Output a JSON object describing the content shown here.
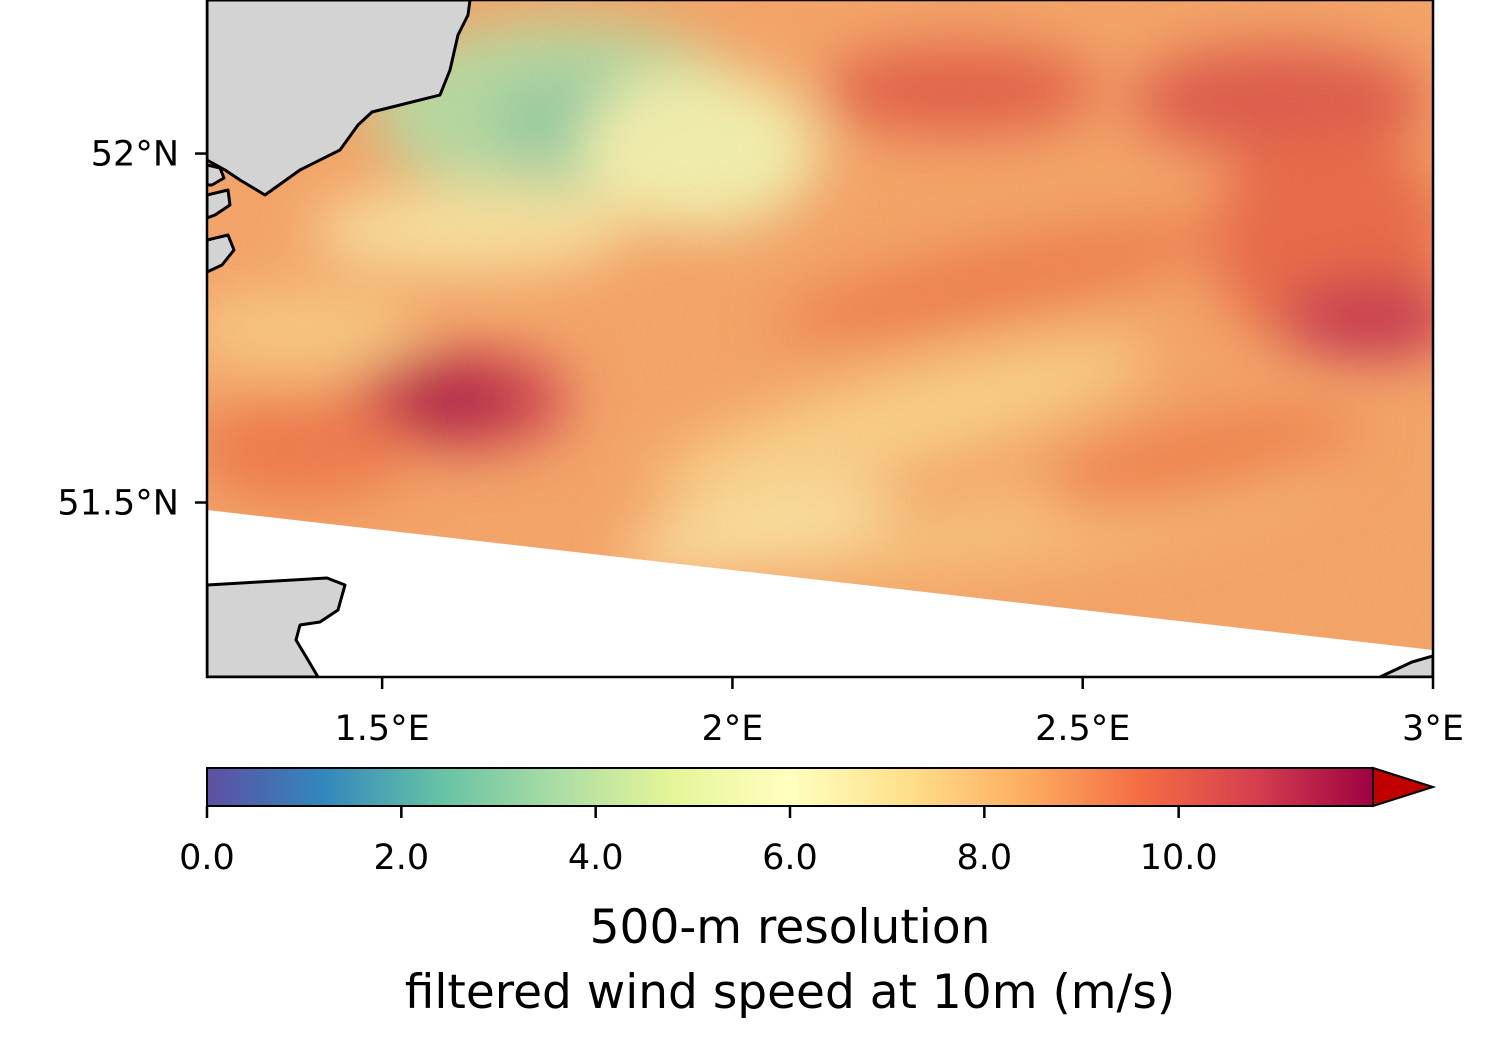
{
  "map": {
    "lat_ticks": [
      {
        "value": 52.0,
        "label": "52°N"
      },
      {
        "value": 51.5,
        "label": "51.5°N"
      }
    ],
    "lon_ticks": [
      {
        "value": 1.5,
        "label": "1.5°E"
      },
      {
        "value": 2.0,
        "label": "2°E"
      },
      {
        "value": 2.5,
        "label": "2.5°E"
      },
      {
        "value": 3.0,
        "label": "3°E"
      }
    ],
    "lon_range": [
      1.25,
      3.0
    ],
    "lat_range": [
      51.25,
      52.22
    ],
    "land_color": "#d3d3d3",
    "no_data_color": "#ffffff"
  },
  "colorbar": {
    "colormap": "Spectral_r",
    "extend": "max",
    "over_color": "#c00000",
    "range": [
      0.0,
      12.0
    ],
    "ticks": [
      {
        "value": 0.0,
        "label": "0.0"
      },
      {
        "value": 2.0,
        "label": "2.0"
      },
      {
        "value": 4.0,
        "label": "4.0"
      },
      {
        "value": 6.0,
        "label": "6.0"
      },
      {
        "value": 8.0,
        "label": "8.0"
      },
      {
        "value": 10.0,
        "label": "10.0"
      }
    ],
    "label_line1": "500-m resolution",
    "label_line2": "filtered wind speed at 10m (m/s)",
    "stops": [
      "#5e4fa2",
      "#3288bd",
      "#66c2a5",
      "#abdda4",
      "#e6f598",
      "#ffffbf",
      "#fee08b",
      "#fdae61",
      "#f46d43",
      "#d53e4f",
      "#9e0142"
    ]
  }
}
